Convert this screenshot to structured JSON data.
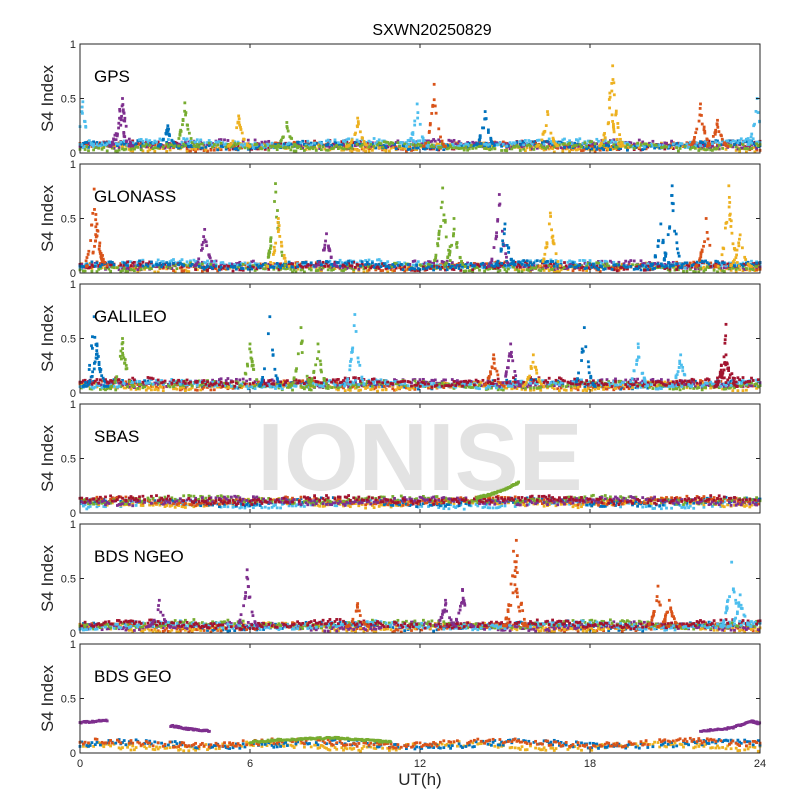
{
  "watermark": "IONISE",
  "chart_data": {
    "type": "scatter",
    "title": "SXWN20250829",
    "xlabel": "UT(h)",
    "ylabel": "S4 Index",
    "xlim": [
      0,
      24
    ],
    "ylim": [
      0,
      1
    ],
    "xticks": [
      "0",
      "6",
      "12",
      "18",
      "24"
    ],
    "yticks": [
      "0",
      "0.5",
      "1"
    ],
    "colors": [
      "#0072BD",
      "#D95319",
      "#EDB120",
      "#7E2F8E",
      "#77AC30",
      "#4DBEEE",
      "#A2142F"
    ],
    "panels": [
      {
        "label": "GPS",
        "baselines": [
          [
            6,
            0.07
          ],
          [
            1,
            0.06
          ],
          [
            2,
            0.05
          ],
          [
            3,
            0.08
          ],
          [
            0,
            0.07
          ],
          [
            5,
            0.09
          ],
          [
            4,
            0.06
          ]
        ],
        "spikes": [
          [
            0.1,
            0.47,
            5
          ],
          [
            1.4,
            0.4,
            3
          ],
          [
            1.5,
            0.5,
            3
          ],
          [
            3.1,
            0.25,
            0
          ],
          [
            3.7,
            0.46,
            4
          ],
          [
            5.6,
            0.34,
            2
          ],
          [
            7.3,
            0.28,
            4
          ],
          [
            9.8,
            0.32,
            2
          ],
          [
            11.9,
            0.45,
            5
          ],
          [
            12.5,
            0.63,
            1
          ],
          [
            14.3,
            0.38,
            0
          ],
          [
            16.5,
            0.38,
            2
          ],
          [
            18.7,
            0.55,
            2
          ],
          [
            18.8,
            0.8,
            2
          ],
          [
            21.9,
            0.45,
            1
          ],
          [
            22.5,
            0.3,
            1
          ],
          [
            23.9,
            0.5,
            5
          ]
        ]
      },
      {
        "label": "GLONASS",
        "baselines": [
          [
            2,
            0.05
          ],
          [
            1,
            0.06
          ],
          [
            3,
            0.07
          ],
          [
            5,
            0.08
          ],
          [
            4,
            0.05
          ],
          [
            6,
            0.06
          ],
          [
            0,
            0.07
          ]
        ],
        "spikes": [
          [
            0.5,
            0.77,
            1
          ],
          [
            0.6,
            0.45,
            1
          ],
          [
            4.4,
            0.4,
            3
          ],
          [
            6.9,
            0.82,
            4
          ],
          [
            7.0,
            0.5,
            2
          ],
          [
            8.7,
            0.36,
            3
          ],
          [
            12.8,
            0.78,
            4
          ],
          [
            13.2,
            0.5,
            4
          ],
          [
            14.8,
            0.72,
            3
          ],
          [
            15.0,
            0.45,
            0
          ],
          [
            16.6,
            0.55,
            2
          ],
          [
            20.5,
            0.45,
            0
          ],
          [
            20.9,
            0.8,
            0
          ],
          [
            22.1,
            0.5,
            1
          ],
          [
            22.9,
            0.8,
            2
          ],
          [
            23.3,
            0.35,
            2
          ]
        ]
      },
      {
        "label": "GALILEO",
        "baselines": [
          [
            0,
            0.08
          ],
          [
            1,
            0.07
          ],
          [
            2,
            0.06
          ],
          [
            3,
            0.09
          ],
          [
            4,
            0.07
          ],
          [
            5,
            0.08
          ],
          [
            6,
            0.1
          ]
        ],
        "spikes": [
          [
            0.5,
            0.7,
            0
          ],
          [
            0.6,
            0.45,
            0
          ],
          [
            1.5,
            0.5,
            4
          ],
          [
            6.0,
            0.45,
            4
          ],
          [
            6.7,
            0.7,
            0
          ],
          [
            7.8,
            0.6,
            4
          ],
          [
            8.4,
            0.45,
            4
          ],
          [
            9.7,
            0.72,
            5
          ],
          [
            14.6,
            0.35,
            1
          ],
          [
            15.2,
            0.45,
            3
          ],
          [
            16.0,
            0.35,
            2
          ],
          [
            17.8,
            0.6,
            0
          ],
          [
            19.7,
            0.45,
            5
          ],
          [
            21.2,
            0.35,
            5
          ],
          [
            22.8,
            0.35,
            6
          ],
          [
            22.8,
            0.63,
            6
          ]
        ]
      },
      {
        "label": "SBAS",
        "baselines": [
          [
            5,
            0.08
          ],
          [
            2,
            0.09
          ],
          [
            0,
            0.1
          ],
          [
            1,
            0.11
          ],
          [
            4,
            0.12
          ],
          [
            3,
            0.11
          ],
          [
            6,
            0.12
          ]
        ],
        "spikes": [],
        "segments": [
          {
            "color": 4,
            "points": [
              [
                14,
                0.14
              ],
              [
                14.5,
                0.17
              ],
              [
                15,
                0.22
              ],
              [
                15.5,
                0.28
              ]
            ]
          }
        ]
      },
      {
        "label": "BDS NGEO",
        "baselines": [
          [
            0,
            0.06
          ],
          [
            1,
            0.05
          ],
          [
            2,
            0.05
          ],
          [
            3,
            0.06
          ],
          [
            4,
            0.08
          ],
          [
            5,
            0.07
          ],
          [
            6,
            0.08
          ]
        ],
        "spikes": [
          [
            2.8,
            0.3,
            3
          ],
          [
            5.9,
            0.58,
            3
          ],
          [
            9.8,
            0.27,
            1
          ],
          [
            12.9,
            0.3,
            3
          ],
          [
            13.5,
            0.4,
            3
          ],
          [
            15.3,
            0.75,
            1
          ],
          [
            15.4,
            0.85,
            1
          ],
          [
            20.4,
            0.43,
            1
          ],
          [
            20.8,
            0.3,
            1
          ],
          [
            23.0,
            0.65,
            5
          ],
          [
            23.3,
            0.35,
            5
          ]
        ]
      },
      {
        "label": "BDS GEO",
        "baselines": [
          [
            2,
            0.06
          ],
          [
            0,
            0.08
          ],
          [
            1,
            0.09
          ]
        ],
        "spikes": [],
        "segments": [
          {
            "color": 3,
            "points": [
              [
                0,
                0.28
              ],
              [
                1,
                0.3
              ]
            ]
          },
          {
            "color": 3,
            "points": [
              [
                3.2,
                0.25
              ],
              [
                3.8,
                0.22
              ],
              [
                4.6,
                0.2
              ]
            ]
          },
          {
            "color": 3,
            "points": [
              [
                21.9,
                0.2
              ],
              [
                23,
                0.23
              ],
              [
                23.7,
                0.29
              ],
              [
                24,
                0.27
              ]
            ]
          },
          {
            "color": 4,
            "points": [
              [
                6,
                0.1
              ],
              [
                7,
                0.12
              ],
              [
                8,
                0.13
              ],
              [
                9,
                0.14
              ],
              [
                10,
                0.12
              ],
              [
                11,
                0.1
              ]
            ]
          }
        ]
      }
    ]
  }
}
